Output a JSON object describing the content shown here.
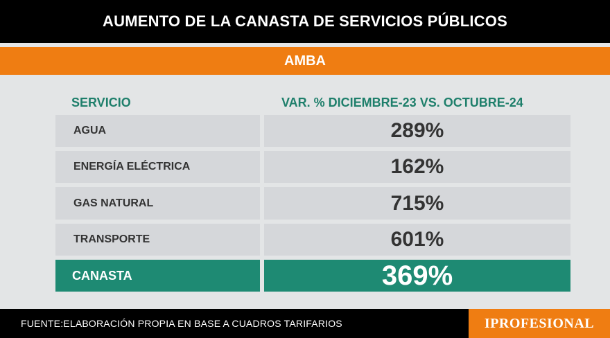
{
  "title": "AUMENTO DE LA CANASTA DE SERVICIOS PÚBLICOS",
  "subtitle": "AMBA",
  "table": {
    "headers": [
      "SERVICIO",
      "VAR. % DICIEMBRE-23 VS. OCTUBRE-24"
    ],
    "rows": [
      {
        "service": "AGUA",
        "value": "289%"
      },
      {
        "service": "ENERGÍA ELÉCTRICA",
        "value": "162%"
      },
      {
        "service": "GAS NATURAL",
        "value": "715%"
      },
      {
        "service": "TRANSPORTE",
        "value": "601%"
      }
    ],
    "total": {
      "service": "CANASTA",
      "value": "369%"
    }
  },
  "footer": {
    "source": "FUENTE:ELABORACIÓN PROPIA EN BASE A CUADROS TARIFARIOS",
    "brand": "IPROFESIONAL"
  },
  "colors": {
    "title_bg": "#000000",
    "subtitle_bg": "#ef7d12",
    "accent_green": "#1e8a73",
    "header_text": "#1e7f6b",
    "row_bg": "#d5d7da",
    "page_bg": "#e3e5e6"
  }
}
